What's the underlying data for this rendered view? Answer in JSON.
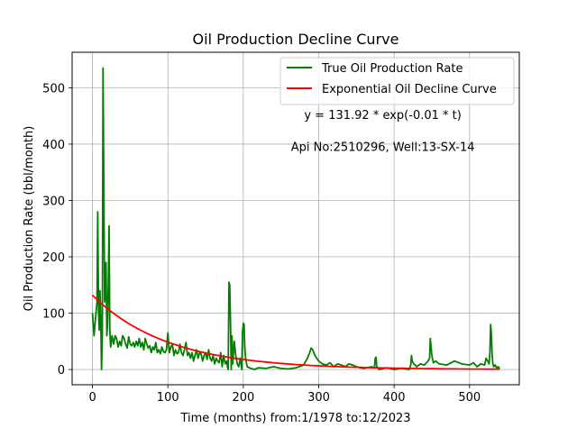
{
  "chart_data": {
    "type": "line",
    "title": "Oil Production Decline Curve",
    "xlabel": "Time (months) from:1/1978 to:12/2023",
    "ylabel": "Oil Production Rate (bbl/month)",
    "xlim": [
      -27,
      566
    ],
    "ylim": [
      -27,
      563
    ],
    "xticks": [
      0,
      100,
      200,
      300,
      400,
      500
    ],
    "yticks": [
      0,
      100,
      200,
      300,
      400,
      500
    ],
    "grid": true,
    "legend_position": "top-right",
    "annotations": [
      {
        "text": "y = 131.92 * exp(-0.01 * t)",
        "x": 385,
        "y": 445
      },
      {
        "text": "Api No:2510296, Well:13-SX-14",
        "x": 385,
        "y": 388
      }
    ],
    "series": [
      {
        "name": "True Oil Production Rate",
        "color": "#008000",
        "x": [
          0,
          2,
          4,
          6,
          7,
          8,
          9,
          10,
          11,
          12,
          13,
          14,
          15,
          16,
          17,
          18,
          19,
          20,
          21,
          22,
          23,
          24,
          25,
          26,
          28,
          30,
          32,
          34,
          36,
          38,
          40,
          42,
          44,
          46,
          48,
          50,
          52,
          54,
          56,
          58,
          60,
          62,
          64,
          66,
          68,
          70,
          72,
          74,
          76,
          78,
          80,
          82,
          84,
          86,
          88,
          90,
          92,
          94,
          96,
          98,
          100,
          102,
          104,
          106,
          108,
          110,
          112,
          114,
          116,
          118,
          120,
          122,
          124,
          126,
          128,
          130,
          132,
          134,
          136,
          138,
          140,
          142,
          144,
          146,
          148,
          150,
          152,
          154,
          156,
          158,
          160,
          162,
          164,
          166,
          168,
          170,
          172,
          174,
          176,
          178,
          179,
          180,
          181,
          182,
          183,
          184,
          185,
          186,
          188,
          190,
          192,
          194,
          196,
          198,
          199,
          200,
          201,
          202,
          203,
          205,
          210,
          215,
          220,
          230,
          240,
          250,
          260,
          270,
          280,
          285,
          288,
          290,
          292,
          295,
          300,
          305,
          310,
          315,
          320,
          325,
          330,
          335,
          340,
          345,
          350,
          355,
          360,
          370,
          374,
          375,
          376,
          377,
          380,
          390,
          400,
          410,
          420,
          422,
          423,
          424,
          426,
          428,
          430,
          435,
          440,
          445,
          447,
          448,
          450,
          452,
          455,
          460,
          470,
          480,
          490,
          500,
          505,
          510,
          515,
          520,
          522,
          524,
          526,
          527,
          528,
          529,
          530,
          531,
          532,
          534,
          536,
          538,
          540
        ],
        "y": [
          100,
          60,
          90,
          120,
          280,
          100,
          70,
          140,
          90,
          0,
          60,
          535,
          350,
          120,
          140,
          190,
          60,
          80,
          150,
          255,
          70,
          40,
          50,
          60,
          45,
          60,
          55,
          40,
          50,
          42,
          60,
          55,
          45,
          38,
          58,
          45,
          42,
          48,
          40,
          50,
          42,
          55,
          40,
          48,
          35,
          55,
          45,
          38,
          42,
          30,
          40,
          35,
          48,
          30,
          35,
          28,
          40,
          32,
          30,
          35,
          65,
          30,
          40,
          45,
          25,
          35,
          28,
          30,
          45,
          30,
          25,
          35,
          48,
          25,
          30,
          20,
          30,
          15,
          25,
          35,
          20,
          30,
          28,
          15,
          25,
          30,
          18,
          35,
          20,
          15,
          25,
          10,
          20,
          15,
          12,
          30,
          5,
          25,
          10,
          15,
          5,
          0,
          155,
          150,
          90,
          0,
          60,
          10,
          50,
          25,
          10,
          5,
          20,
          0,
          65,
          82,
          80,
          40,
          20,
          5,
          2,
          0,
          3,
          2,
          5,
          2,
          1,
          3,
          8,
          20,
          30,
          38,
          35,
          25,
          15,
          10,
          8,
          12,
          5,
          10,
          8,
          5,
          10,
          8,
          5,
          3,
          2,
          5,
          3,
          20,
          22,
          5,
          0,
          3,
          0,
          2,
          0,
          8,
          25,
          15,
          10,
          8,
          5,
          10,
          8,
          15,
          20,
          55,
          25,
          12,
          15,
          10,
          8,
          15,
          10,
          8,
          12,
          5,
          10,
          8,
          20,
          15,
          10,
          30,
          80,
          60,
          25,
          10,
          5,
          8,
          3,
          5,
          2
        ]
      },
      {
        "name": "Exponential Oil Decline Curve",
        "color": "#ff0000",
        "equation": {
          "a": 131.92,
          "b": 0.01
        }
      }
    ]
  }
}
